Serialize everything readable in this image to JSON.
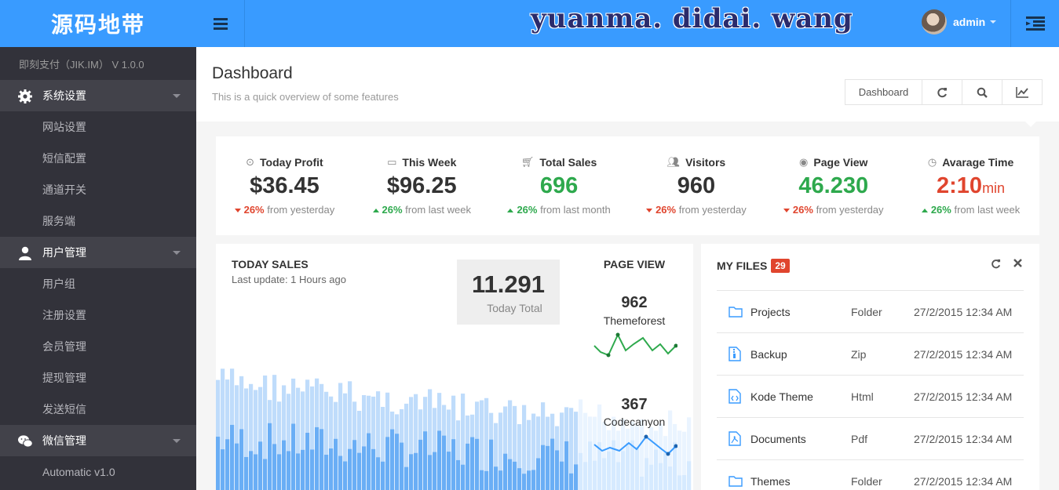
{
  "brand": {
    "title": "源码地带",
    "version": "即刻支付（JIK.IM） V 1.0.0"
  },
  "sidebar": {
    "groups": [
      {
        "label": "系统设置",
        "icon": "gear-icon",
        "items": [
          "网站设置",
          "短信配置",
          "通道开关",
          "服务端"
        ]
      },
      {
        "label": "用户管理",
        "icon": "user-icon",
        "items": [
          "用户组",
          "注册设置",
          "会员管理",
          "提现管理",
          "发送短信"
        ]
      },
      {
        "label": "微信管理",
        "icon": "wechat-icon",
        "items": [
          "Automatic v1.0"
        ]
      }
    ]
  },
  "topbar": {
    "watermark": "yuanma. didai. wang",
    "user": "admin"
  },
  "header": {
    "title": "Dashboard",
    "subtitle": "This is a quick overview of some features",
    "button_label": "Dashboard"
  },
  "stats": [
    {
      "label": "Today Profit",
      "icon": "target-icon",
      "value": "$36.45",
      "unit": "",
      "value_color": "default",
      "trend": "down",
      "pct": "26%",
      "note": "from yesterday"
    },
    {
      "label": "This Week",
      "icon": "calendar-icon",
      "value": "$96.25",
      "unit": "",
      "value_color": "default",
      "trend": "up",
      "pct": "26%",
      "note": "from last week"
    },
    {
      "label": "Total Sales",
      "icon": "cart-icon",
      "value": "696",
      "unit": "",
      "value_color": "green",
      "trend": "up",
      "pct": "26%",
      "note": "from last month"
    },
    {
      "label": "Visitors",
      "icon": "users-icon",
      "value": "960",
      "unit": "",
      "value_color": "default",
      "trend": "down",
      "pct": "26%",
      "note": "from yesterday"
    },
    {
      "label": "Page View",
      "icon": "eye-icon",
      "value": "46.230",
      "unit": "",
      "value_color": "green",
      "trend": "down",
      "pct": "26%",
      "note": "from yesterday"
    },
    {
      "label": "Avarage Time",
      "icon": "clock-icon",
      "value": "2:10",
      "unit": "min",
      "value_color": "red",
      "trend": "up",
      "pct": "26%",
      "note": "from last week"
    }
  ],
  "sales": {
    "title": "TODAY SALES",
    "subtitle": "Last update: 1 Hours ago",
    "total_value": "11.291",
    "total_label": "Today Total",
    "pageview_title": "PAGE VIEW",
    "pageviews": [
      {
        "value": "962",
        "name": "Themeforest",
        "color": "#2ea94d"
      },
      {
        "value": "367",
        "name": "Codecanyon",
        "color": "#399bff"
      }
    ]
  },
  "files": {
    "title": "MY FILES",
    "count": "29",
    "rows": [
      {
        "name": "Projects",
        "type": "Folder",
        "date": "27/2/2015 12:34 AM",
        "icon": "folder-icon"
      },
      {
        "name": "Backup",
        "type": "Zip",
        "date": "27/2/2015 12:34 AM",
        "icon": "zip-file-icon"
      },
      {
        "name": "Kode Theme",
        "type": "Html",
        "date": "27/2/2015 12:34 AM",
        "icon": "code-file-icon"
      },
      {
        "name": "Documents",
        "type": "Pdf",
        "date": "27/2/2015 12:34 AM",
        "icon": "pdf-file-icon"
      },
      {
        "name": "Themes",
        "type": "Folder",
        "date": "27/2/2015 12:34 AM",
        "icon": "folder-icon"
      }
    ]
  },
  "colors": {
    "accent": "#399bff",
    "sidebar": "#32323a",
    "green": "#2ea94d",
    "red": "#e0452e"
  }
}
